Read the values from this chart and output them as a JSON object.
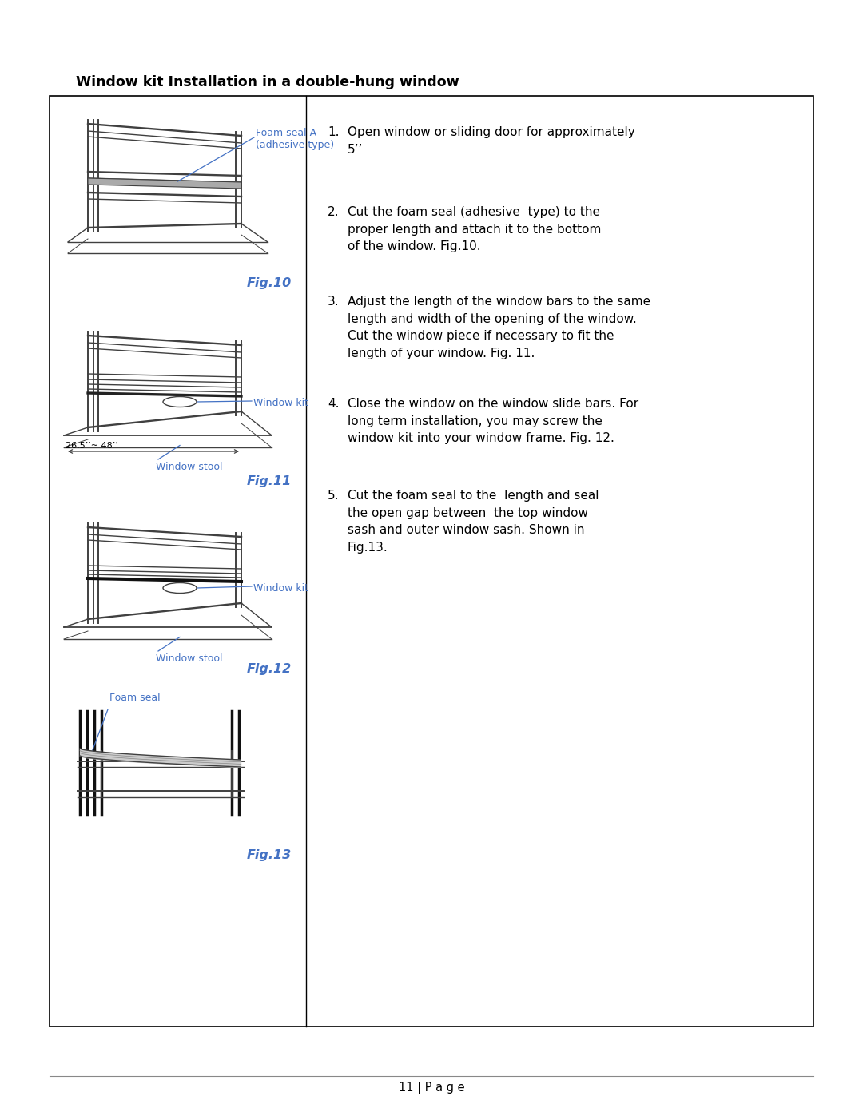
{
  "title": "Window kit Installation in a double-hung window",
  "title_fontsize": 12.5,
  "page_number": "11 | P a g e",
  "background_color": "#ffffff",
  "border_color": "#000000",
  "label_color": "#4472C4",
  "fig_label_color": "#4472C4",
  "fig10_label": "Fig.10",
  "fig11_label": "Fig.11",
  "fig12_label": "Fig.12",
  "fig13_label": "Fig.13",
  "foam_seal_a_label": "Foam seal A\n(adhesive type)",
  "window_kit_label1": "Window kit",
  "window_stool_label1": "Window stool",
  "dimension_label": "26.5’’~ 48’’",
  "window_kit_label2": "Window kit",
  "window_stool_label2": "Window stool",
  "foam_seal_label": "Foam seal",
  "instructions": [
    "Open window or sliding door for approximately\n5’’",
    "Cut the foam seal (adhesive  type) to the\nproper length and attach it to the bottom\nof the window. Fig.10.",
    "Adjust the length of the window bars to the same\nlength and width of the opening of the window.\nCut the window piece if necessary to fit the\nlength of your window. Fig. 11.",
    "Close the window on the window slide bars. For\nlong term installation, you may screw the\nwindow kit into your window frame. Fig. 12.",
    "Cut the foam seal to the  length and seal\nthe open gap between  the top window\nsash and outer window sash. Shown in\nFig.13."
  ]
}
